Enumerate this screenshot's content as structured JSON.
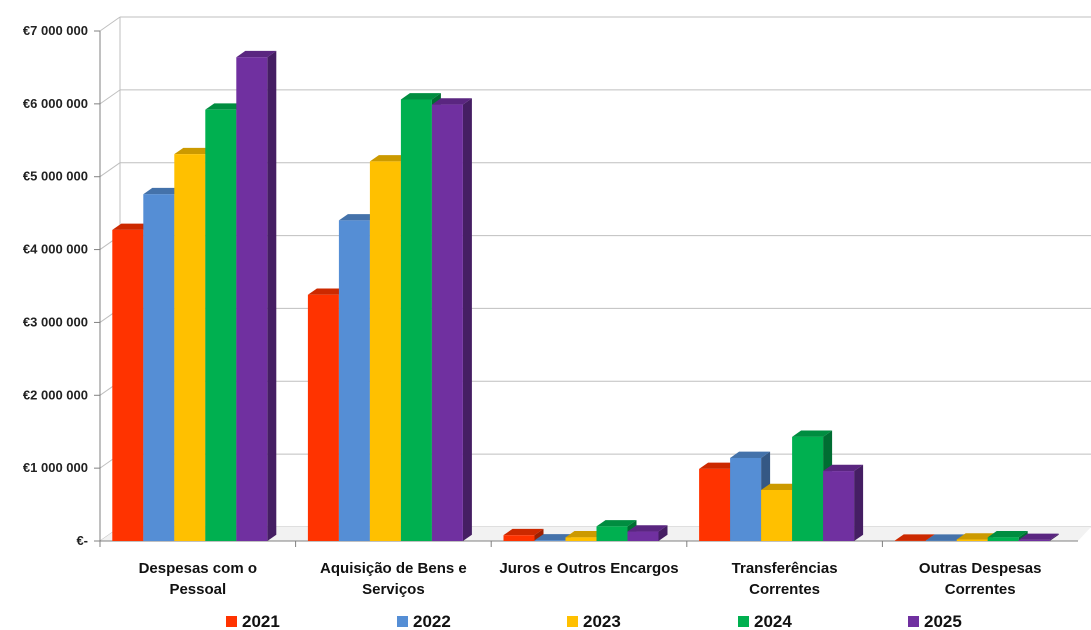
{
  "chart_data": {
    "type": "bar",
    "style": "3d-clustered-column",
    "categories": [
      [
        "Despesas com o",
        "Pessoal"
      ],
      [
        "Aquisição de Bens e",
        "Serviços"
      ],
      [
        "Juros e Outros Encargos"
      ],
      [
        "Transferências",
        "Correntes"
      ],
      [
        "Outras Despesas",
        "Correntes"
      ]
    ],
    "series": [
      {
        "name": "2021",
        "color": "#FF3300",
        "values": [
          4270000,
          3380000,
          80000,
          990000,
          5000
        ]
      },
      {
        "name": "2022",
        "color": "#558ED5",
        "values": [
          4760000,
          4400000,
          8000,
          1140000,
          5000
        ]
      },
      {
        "name": "2023",
        "color": "#FFC000",
        "values": [
          5310000,
          5210000,
          50000,
          700000,
          20000
        ]
      },
      {
        "name": "2024",
        "color": "#00B050",
        "values": [
          5920000,
          6060000,
          200000,
          1430000,
          50000
        ]
      },
      {
        "name": "2025",
        "color": "#7030A0",
        "values": [
          6640000,
          5990000,
          130000,
          960000,
          15000
        ]
      }
    ],
    "y_ticks": [
      {
        "value": 0,
        "label": "€-"
      },
      {
        "value": 1000000,
        "label": "€1 000 000"
      },
      {
        "value": 2000000,
        "label": "€2 000 000"
      },
      {
        "value": 3000000,
        "label": "€3 000 000"
      },
      {
        "value": 4000000,
        "label": "€4 000 000"
      },
      {
        "value": 5000000,
        "label": "€5 000 000"
      },
      {
        "value": 6000000,
        "label": "€6 000 000"
      },
      {
        "value": 7000000,
        "label": "€7 000 000"
      }
    ],
    "ylim": [
      0,
      7000000
    ],
    "grid": true,
    "legend_position": "bottom",
    "title": "",
    "xlabel": "",
    "ylabel": ""
  }
}
